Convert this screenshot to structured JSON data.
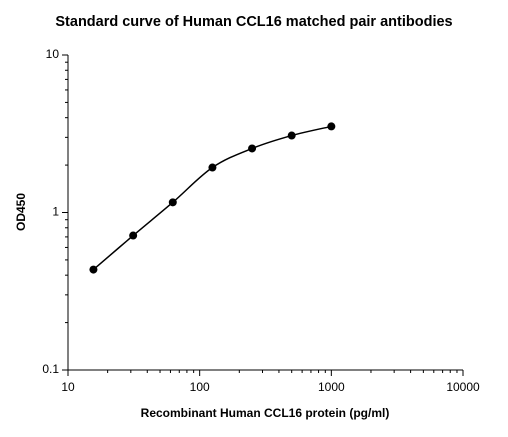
{
  "chart_data": {
    "type": "scatter",
    "title": "Standard curve of Human CCL16 matched pair antibodies",
    "x_label": "Recombinant Human CCL16 protein (pg/ml)",
    "y_label": "OD450",
    "x": [
      15.6,
      31.25,
      62.5,
      125,
      250,
      500,
      1000
    ],
    "series": [
      {
        "color": "#000000",
        "values": [
          0.434,
          0.714,
          1.16,
          1.93,
          2.55,
          3.08,
          3.52
        ]
      }
    ],
    "x_log": true,
    "y_log": true,
    "xlim": [
      10,
      10000
    ],
    "ylim": [
      0.1,
      10
    ],
    "xticks": [
      10,
      100,
      1000,
      10000
    ],
    "yticks": [
      0.1,
      1,
      10
    ],
    "x_minor_ticks": [
      20,
      30,
      40,
      50,
      60,
      70,
      80,
      90,
      200,
      300,
      400,
      500,
      600,
      700,
      800,
      900,
      2000,
      3000,
      4000,
      5000,
      6000,
      7000,
      8000,
      9000
    ],
    "y_minor_ticks": [
      0.2,
      0.3,
      0.4,
      0.5,
      0.6,
      0.7,
      0.8,
      0.9,
      2,
      3,
      4,
      5,
      6,
      7,
      8,
      9
    ]
  }
}
